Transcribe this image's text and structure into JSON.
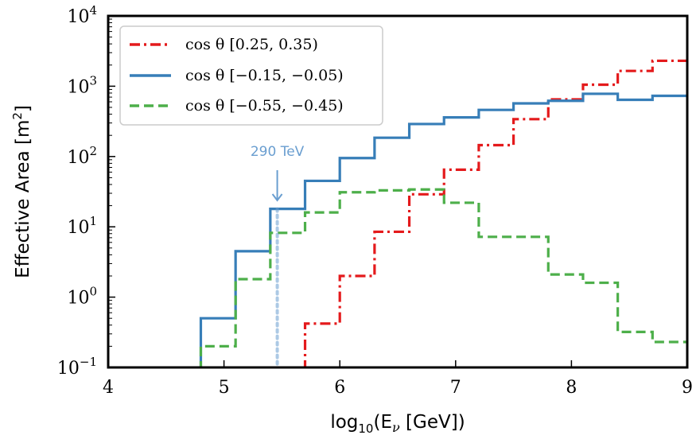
{
  "chart_data": {
    "type": "line",
    "step": true,
    "xlabel_parts": [
      "log",
      "10",
      "(E",
      "ν",
      " [GeV])"
    ],
    "ylabel_parts": [
      "Effective Area [m",
      "2",
      "]"
    ],
    "xlim": [
      4,
      9
    ],
    "ylim": [
      0.1,
      10000
    ],
    "yscale": "log",
    "grid": false,
    "legend_position": "top-left",
    "x_ticks": [
      "4",
      "5",
      "6",
      "7",
      "8",
      "9"
    ],
    "y_ticks": [
      {
        "base": "10",
        "exp": "−1",
        "value": 0.1
      },
      {
        "base": "10",
        "exp": "0",
        "value": 1
      },
      {
        "base": "10",
        "exp": "1",
        "value": 10
      },
      {
        "base": "10",
        "exp": "2",
        "value": 100
      },
      {
        "base": "10",
        "exp": "3",
        "value": 1000
      },
      {
        "base": "10",
        "exp": "4",
        "value": 10000
      }
    ],
    "bin_edges": [
      4.8,
      5.1,
      5.4,
      5.7,
      6.0,
      6.3,
      6.6,
      6.9,
      7.2,
      7.5,
      7.8,
      8.1,
      8.4,
      8.7,
      9.0
    ],
    "series": [
      {
        "name": "cos θ [0.25, 0.35)",
        "color": "#e41a1c",
        "style": "dashdot",
        "values": [
          null,
          null,
          null,
          0.42,
          2.0,
          8.5,
          29,
          65,
          145,
          340,
          650,
          1050,
          1650,
          2300
        ]
      },
      {
        "name": "cos θ [−0.15, −0.05)",
        "color": "#377eb8",
        "style": "solid",
        "values": [
          0.5,
          4.5,
          18,
          45,
          95,
          185,
          290,
          360,
          460,
          570,
          620,
          780,
          640,
          730
        ]
      },
      {
        "name": "cos θ [−0.55, −0.45)",
        "color": "#4daf4a",
        "style": "dashed",
        "values": [
          0.2,
          1.8,
          8.2,
          16,
          31,
          33,
          34,
          22,
          7.2,
          7.2,
          2.1,
          1.6,
          0.32,
          0.23
        ]
      }
    ],
    "annotation": {
      "text": "290 TeV",
      "x": 5.46,
      "color": "#6a9ed0"
    }
  }
}
